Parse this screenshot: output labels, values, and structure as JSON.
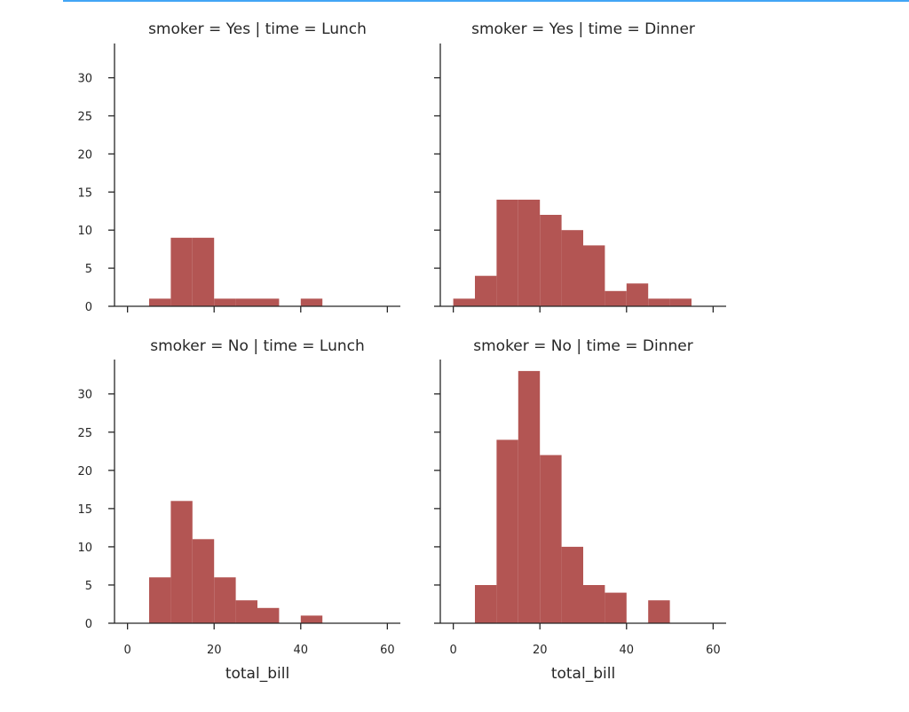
{
  "colors": {
    "bar": "#b35553",
    "axis": "#262626",
    "top_rule": "#42a5f5"
  },
  "chart_data": {
    "type": "bar",
    "layout": "facet-grid 2x2 histograms",
    "x_axis": {
      "label": "total_bill",
      "ticks": [
        0,
        20,
        40,
        60
      ],
      "lim": [
        -3,
        63
      ]
    },
    "y_axis": {
      "ticks": [
        0,
        5,
        10,
        15,
        20,
        25,
        30
      ],
      "lim": [
        0,
        34.5
      ]
    },
    "bin_width": 5,
    "panels": [
      {
        "title": "smoker = Yes | time = Lunch",
        "bins": [
          {
            "x0": 5,
            "x1": 10,
            "count": 1
          },
          {
            "x0": 10,
            "x1": 15,
            "count": 9
          },
          {
            "x0": 15,
            "x1": 20,
            "count": 9
          },
          {
            "x0": 20,
            "x1": 25,
            "count": 1
          },
          {
            "x0": 25,
            "x1": 30,
            "count": 1
          },
          {
            "x0": 30,
            "x1": 35,
            "count": 1
          },
          {
            "x0": 40,
            "x1": 45,
            "count": 1
          }
        ]
      },
      {
        "title": "smoker = Yes | time = Dinner",
        "bins": [
          {
            "x0": 0,
            "x1": 5,
            "count": 1
          },
          {
            "x0": 5,
            "x1": 10,
            "count": 4
          },
          {
            "x0": 10,
            "x1": 15,
            "count": 14
          },
          {
            "x0": 15,
            "x1": 20,
            "count": 14
          },
          {
            "x0": 20,
            "x1": 25,
            "count": 12
          },
          {
            "x0": 25,
            "x1": 30,
            "count": 10
          },
          {
            "x0": 30,
            "x1": 35,
            "count": 8
          },
          {
            "x0": 35,
            "x1": 40,
            "count": 2
          },
          {
            "x0": 40,
            "x1": 45,
            "count": 3
          },
          {
            "x0": 45,
            "x1": 50,
            "count": 1
          },
          {
            "x0": 50,
            "x1": 55,
            "count": 1
          }
        ]
      },
      {
        "title": "smoker = No | time = Lunch",
        "bins": [
          {
            "x0": 5,
            "x1": 10,
            "count": 6
          },
          {
            "x0": 10,
            "x1": 15,
            "count": 16
          },
          {
            "x0": 15,
            "x1": 20,
            "count": 11
          },
          {
            "x0": 20,
            "x1": 25,
            "count": 6
          },
          {
            "x0": 25,
            "x1": 30,
            "count": 3
          },
          {
            "x0": 30,
            "x1": 35,
            "count": 2
          },
          {
            "x0": 40,
            "x1": 45,
            "count": 1
          }
        ]
      },
      {
        "title": "smoker = No | time = Dinner",
        "bins": [
          {
            "x0": 5,
            "x1": 10,
            "count": 5
          },
          {
            "x0": 10,
            "x1": 15,
            "count": 24
          },
          {
            "x0": 15,
            "x1": 20,
            "count": 33
          },
          {
            "x0": 20,
            "x1": 25,
            "count": 22
          },
          {
            "x0": 25,
            "x1": 30,
            "count": 10
          },
          {
            "x0": 30,
            "x1": 35,
            "count": 5
          },
          {
            "x0": 35,
            "x1": 40,
            "count": 4
          },
          {
            "x0": 45,
            "x1": 50,
            "count": 3
          }
        ]
      }
    ]
  }
}
